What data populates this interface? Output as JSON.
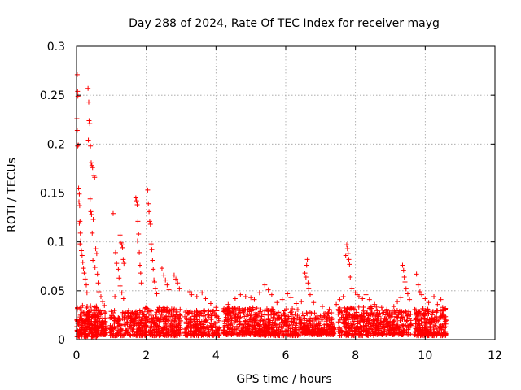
{
  "chart_data": {
    "type": "scatter",
    "title": "Day 288 of 2024, Rate Of TEC Index for receiver mayg",
    "xlabel": "GPS time / hours",
    "ylabel": "ROTI / TECUs",
    "xlim": [
      0,
      12
    ],
    "ylim": [
      0,
      0.3
    ],
    "x_ticks": [
      0,
      2,
      4,
      6,
      8,
      10,
      12
    ],
    "y_ticks": [
      0,
      0.05,
      0.1,
      0.15,
      0.2,
      0.25,
      0.3
    ],
    "x_tick_labels": [
      "0",
      "2",
      "4",
      "6",
      "8",
      "10",
      "12"
    ],
    "y_tick_labels": [
      "0",
      "0.05",
      "0.1",
      "0.15",
      "0.2",
      "0.25",
      "0.3"
    ],
    "grid": true,
    "marker": "plus",
    "color": "#ff0000",
    "series": [
      {
        "name": "ROTI",
        "points": [
          [
            0.02,
            0.271
          ],
          [
            0.03,
            0.254
          ],
          [
            0.04,
            0.249
          ],
          [
            0.01,
            0.226
          ],
          [
            0.02,
            0.214
          ],
          [
            0.05,
            0.199
          ],
          [
            0.03,
            0.198
          ],
          [
            0.06,
            0.155
          ],
          [
            0.08,
            0.149
          ],
          [
            0.07,
            0.141
          ],
          [
            0.09,
            0.137
          ],
          [
            0.1,
            0.121
          ],
          [
            0.08,
            0.119
          ],
          [
            0.11,
            0.109
          ],
          [
            0.12,
            0.101
          ],
          [
            0.1,
            0.098
          ],
          [
            0.14,
            0.091
          ],
          [
            0.16,
            0.086
          ],
          [
            0.18,
            0.079
          ],
          [
            0.2,
            0.073
          ],
          [
            0.22,
            0.068
          ],
          [
            0.25,
            0.062
          ],
          [
            0.28,
            0.056
          ],
          [
            0.3,
            0.048
          ],
          [
            0.33,
            0.257
          ],
          [
            0.35,
            0.243
          ],
          [
            0.36,
            0.224
          ],
          [
            0.38,
            0.221
          ],
          [
            0.34,
            0.204
          ],
          [
            0.4,
            0.198
          ],
          [
            0.42,
            0.181
          ],
          [
            0.44,
            0.178
          ],
          [
            0.46,
            0.176
          ],
          [
            0.5,
            0.168
          ],
          [
            0.52,
            0.166
          ],
          [
            0.39,
            0.144
          ],
          [
            0.41,
            0.131
          ],
          [
            0.43,
            0.128
          ],
          [
            0.48,
            0.123
          ],
          [
            0.45,
            0.109
          ],
          [
            0.55,
            0.093
          ],
          [
            0.58,
            0.088
          ],
          [
            0.47,
            0.081
          ],
          [
            0.53,
            0.074
          ],
          [
            0.6,
            0.067
          ],
          [
            0.62,
            0.058
          ],
          [
            0.64,
            0.049
          ],
          [
            0.7,
            0.044
          ],
          [
            0.75,
            0.039
          ],
          [
            0.8,
            0.035
          ],
          [
            1.05,
            0.129
          ],
          [
            1.12,
            0.089
          ],
          [
            1.15,
            0.078
          ],
          [
            1.2,
            0.072
          ],
          [
            1.22,
            0.063
          ],
          [
            1.25,
            0.055
          ],
          [
            1.3,
            0.048
          ],
          [
            1.35,
            0.042
          ],
          [
            1.25,
            0.107
          ],
          [
            1.28,
            0.099
          ],
          [
            1.3,
            0.097
          ],
          [
            1.32,
            0.094
          ],
          [
            1.34,
            0.082
          ],
          [
            1.36,
            0.078
          ],
          [
            1.1,
            0.044
          ],
          [
            1.7,
            0.145
          ],
          [
            1.72,
            0.142
          ],
          [
            1.74,
            0.138
          ],
          [
            1.76,
            0.121
          ],
          [
            1.78,
            0.108
          ],
          [
            1.75,
            0.101
          ],
          [
            1.8,
            0.089
          ],
          [
            1.82,
            0.076
          ],
          [
            1.84,
            0.068
          ],
          [
            1.86,
            0.058
          ],
          [
            2.04,
            0.153
          ],
          [
            2.06,
            0.139
          ],
          [
            2.08,
            0.131
          ],
          [
            2.1,
            0.121
          ],
          [
            2.12,
            0.118
          ],
          [
            2.14,
            0.098
          ],
          [
            2.16,
            0.092
          ],
          [
            2.18,
            0.081
          ],
          [
            2.2,
            0.072
          ],
          [
            2.22,
            0.061
          ],
          [
            2.24,
            0.059
          ],
          [
            2.26,
            0.052
          ],
          [
            2.3,
            0.047
          ],
          [
            2.45,
            0.073
          ],
          [
            2.5,
            0.066
          ],
          [
            2.55,
            0.061
          ],
          [
            2.6,
            0.056
          ],
          [
            2.65,
            0.051
          ],
          [
            2.8,
            0.066
          ],
          [
            2.85,
            0.062
          ],
          [
            2.9,
            0.058
          ],
          [
            2.95,
            0.052
          ],
          [
            3.25,
            0.049
          ],
          [
            3.3,
            0.046
          ],
          [
            3.45,
            0.044
          ],
          [
            3.6,
            0.048
          ],
          [
            3.7,
            0.042
          ],
          [
            3.85,
            0.037
          ],
          [
            4.0,
            0.033
          ],
          [
            4.35,
            0.036
          ],
          [
            4.55,
            0.042
          ],
          [
            4.7,
            0.046
          ],
          [
            4.85,
            0.044
          ],
          [
            5.0,
            0.043
          ],
          [
            5.1,
            0.041
          ],
          [
            5.25,
            0.048
          ],
          [
            5.4,
            0.056
          ],
          [
            5.5,
            0.051
          ],
          [
            5.6,
            0.046
          ],
          [
            5.75,
            0.038
          ],
          [
            5.9,
            0.041
          ],
          [
            6.05,
            0.047
          ],
          [
            6.15,
            0.043
          ],
          [
            6.3,
            0.037
          ],
          [
            6.45,
            0.039
          ],
          [
            6.55,
            0.068
          ],
          [
            6.58,
            0.064
          ],
          [
            6.6,
            0.076
          ],
          [
            6.62,
            0.082
          ],
          [
            6.64,
            0.058
          ],
          [
            6.66,
            0.052
          ],
          [
            6.7,
            0.046
          ],
          [
            6.8,
            0.038
          ],
          [
            7.05,
            0.034
          ],
          [
            7.25,
            0.031
          ],
          [
            7.45,
            0.036
          ],
          [
            7.55,
            0.041
          ],
          [
            7.65,
            0.044
          ],
          [
            7.72,
            0.086
          ],
          [
            7.75,
            0.097
          ],
          [
            7.77,
            0.093
          ],
          [
            7.79,
            0.088
          ],
          [
            7.81,
            0.082
          ],
          [
            7.83,
            0.077
          ],
          [
            7.85,
            0.064
          ],
          [
            7.9,
            0.052
          ],
          [
            8.0,
            0.048
          ],
          [
            8.05,
            0.046
          ],
          [
            8.1,
            0.044
          ],
          [
            8.2,
            0.042
          ],
          [
            8.3,
            0.046
          ],
          [
            8.4,
            0.041
          ],
          [
            8.55,
            0.036
          ],
          [
            8.75,
            0.033
          ],
          [
            8.9,
            0.031
          ],
          [
            9.1,
            0.034
          ],
          [
            9.2,
            0.039
          ],
          [
            9.3,
            0.043
          ],
          [
            9.35,
            0.076
          ],
          [
            9.38,
            0.071
          ],
          [
            9.4,
            0.064
          ],
          [
            9.42,
            0.059
          ],
          [
            9.45,
            0.052
          ],
          [
            9.5,
            0.047
          ],
          [
            9.55,
            0.041
          ],
          [
            9.75,
            0.067
          ],
          [
            9.8,
            0.056
          ],
          [
            9.85,
            0.049
          ],
          [
            9.9,
            0.046
          ],
          [
            10.0,
            0.042
          ],
          [
            10.1,
            0.038
          ],
          [
            10.25,
            0.044
          ],
          [
            10.35,
            0.036
          ],
          [
            10.45,
            0.041
          ],
          [
            10.5,
            0.033
          ]
        ],
        "dense_bands": [
          {
            "x_start": 0.0,
            "x_end": 0.6,
            "y_low": 0.003,
            "y_high": 0.035,
            "count": 220
          },
          {
            "x_start": 0.6,
            "x_end": 0.85,
            "y_low": 0.005,
            "y_high": 0.03,
            "count": 70
          },
          {
            "x_start": 0.95,
            "x_end": 1.95,
            "y_low": 0.004,
            "y_high": 0.03,
            "count": 220
          },
          {
            "x_start": 1.95,
            "x_end": 3.0,
            "y_low": 0.004,
            "y_high": 0.033,
            "count": 260
          },
          {
            "x_start": 3.1,
            "x_end": 4.1,
            "y_low": 0.004,
            "y_high": 0.03,
            "count": 230
          },
          {
            "x_start": 4.2,
            "x_end": 5.2,
            "y_low": 0.005,
            "y_high": 0.033,
            "count": 250
          },
          {
            "x_start": 5.2,
            "x_end": 6.4,
            "y_low": 0.004,
            "y_high": 0.032,
            "count": 270
          },
          {
            "x_start": 6.4,
            "x_end": 7.4,
            "y_low": 0.005,
            "y_high": 0.028,
            "count": 230
          },
          {
            "x_start": 7.5,
            "x_end": 8.6,
            "y_low": 0.004,
            "y_high": 0.034,
            "count": 260
          },
          {
            "x_start": 8.6,
            "x_end": 9.6,
            "y_low": 0.005,
            "y_high": 0.03,
            "count": 220
          },
          {
            "x_start": 9.7,
            "x_end": 10.6,
            "y_low": 0.004,
            "y_high": 0.032,
            "count": 230
          }
        ]
      }
    ]
  }
}
